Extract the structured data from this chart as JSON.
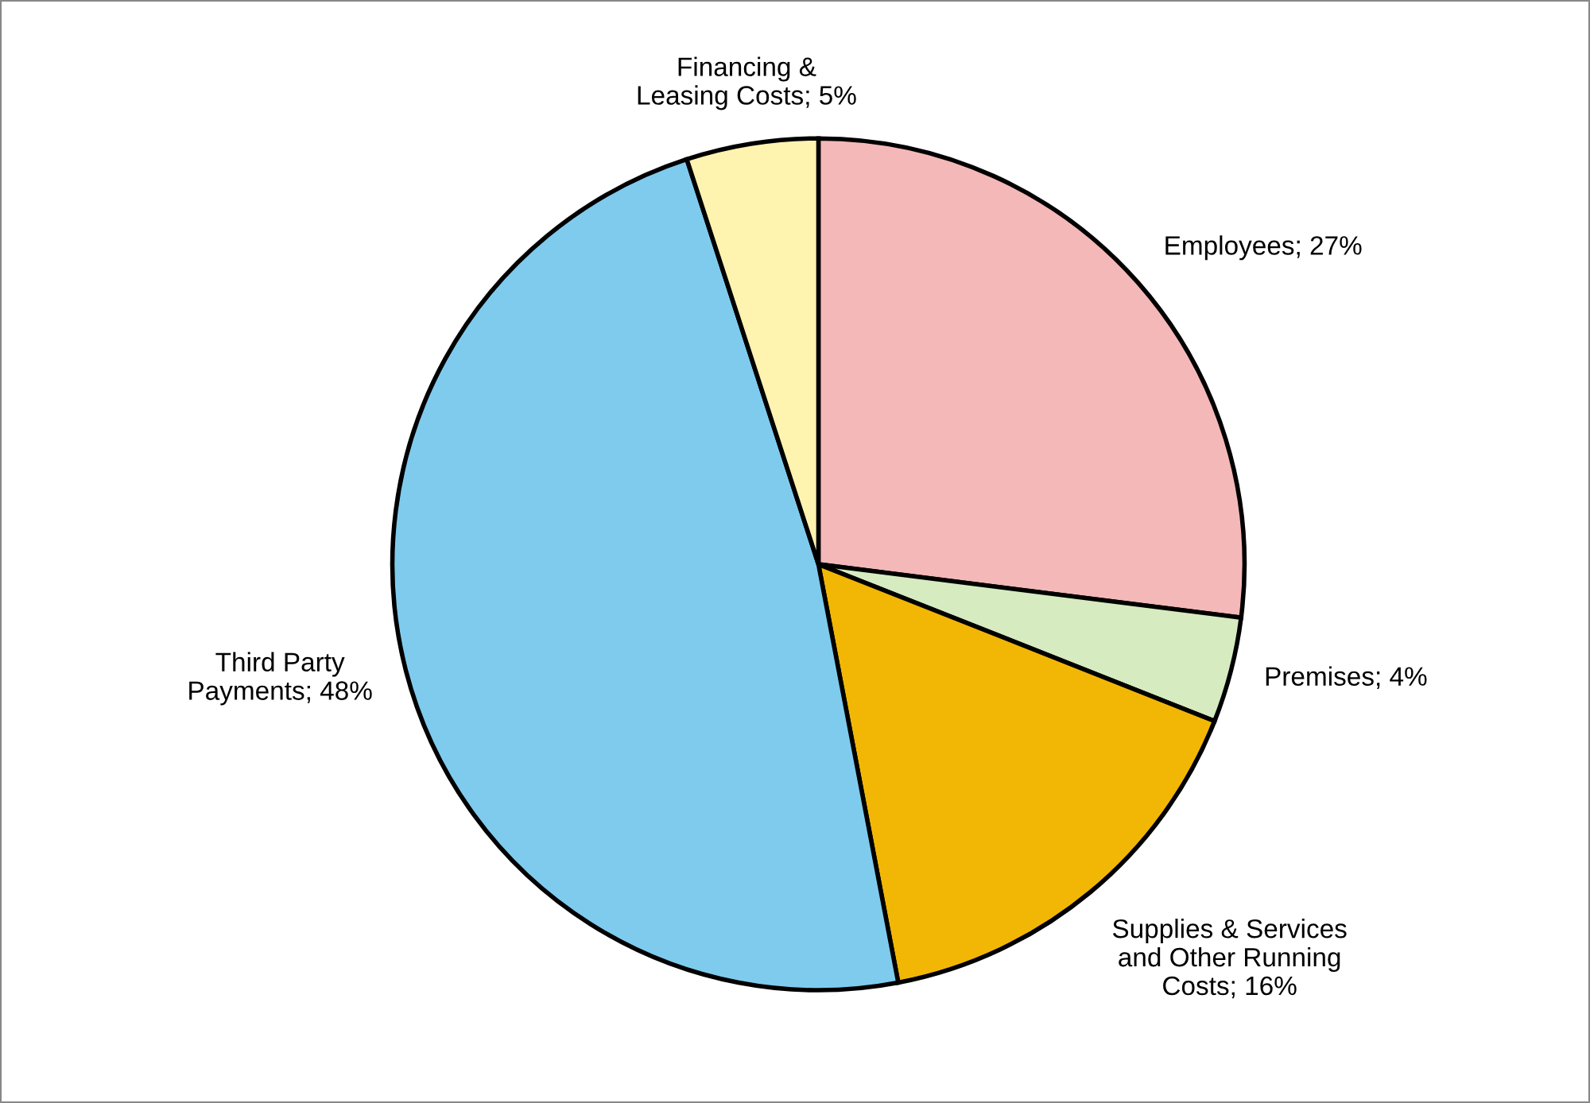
{
  "chart_data": {
    "type": "pie",
    "categories": [
      "Employees; 27%",
      "Premises; 4%",
      "Supplies & Services\nand Other Running\nCosts; 16%",
      "Third Party\nPayments; 48%",
      "Financing &\nLeasing Costs; 5%"
    ],
    "values": [
      27,
      4,
      16,
      48,
      5
    ],
    "colors": [
      "#f4b8b8",
      "#d6ebc0",
      "#f2b705",
      "#7fcbee",
      "#fff3b0"
    ],
    "legend": false
  }
}
